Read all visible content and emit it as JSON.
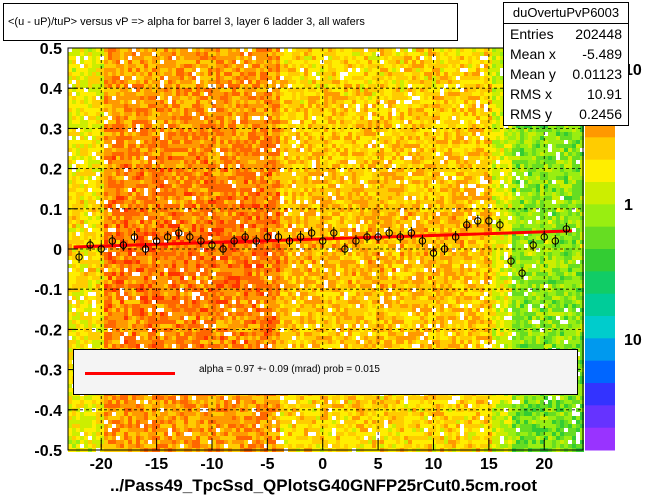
{
  "title": "<(u - uP)/tuP> versus   vP => alpha for barrel 3, layer 6 ladder 3, all wafers",
  "footer": "../Pass49_TpcSsd_QPlotsG40GNFP25rCut0.5cm.root",
  "stats": {
    "name": "duOvertuPvP6003",
    "rows": [
      {
        "label": "Entries",
        "value": "202448"
      },
      {
        "label": "Mean x",
        "value": "-5.489"
      },
      {
        "label": "Mean y",
        "value": "0.01123"
      },
      {
        "label": "RMS x",
        "value": "10.91"
      },
      {
        "label": "RMS y",
        "value": "0.2456"
      }
    ]
  },
  "legend": {
    "text": "alpha =    0.97 +-  0.09 (mrad) prob = 0.015",
    "line_color": "#ff0000"
  },
  "colorbar": {
    "labels": [
      "10",
      "1",
      "10"
    ]
  },
  "chart_data": {
    "type": "heatmap",
    "xlim": [
      -23,
      23.5
    ],
    "ylim": [
      -0.5,
      0.5
    ],
    "x_ticks": [
      -20,
      -15,
      -10,
      -5,
      0,
      5,
      10,
      15,
      20
    ],
    "y_ticks": [
      -0.5,
      -0.4,
      -0.3,
      -0.2,
      -0.1,
      0,
      0.1,
      0.2,
      0.3,
      0.4,
      0.5
    ],
    "grid": true,
    "fit_line": {
      "x": [
        -22.5,
        22.5
      ],
      "y": [
        0.005,
        0.045
      ],
      "color": "#ff0000"
    },
    "profile_points": {
      "x": [
        -22,
        -21,
        -20,
        -19,
        -18,
        -17,
        -16,
        -15,
        -14,
        -13,
        -12,
        -11,
        -10,
        -9,
        -8,
        -7,
        -6,
        -5,
        -4,
        -3,
        -2,
        -1,
        0,
        1,
        2,
        3,
        4,
        5,
        6,
        7,
        8,
        9,
        10,
        11,
        12,
        13,
        14,
        15,
        16,
        17,
        18,
        19,
        20,
        21,
        22
      ],
      "y": [
        -0.02,
        0.01,
        0.0,
        0.02,
        0.01,
        0.03,
        0.0,
        0.02,
        0.03,
        0.04,
        0.03,
        0.02,
        0.01,
        0.0,
        0.02,
        0.03,
        0.02,
        0.03,
        0.03,
        0.02,
        0.03,
        0.04,
        0.02,
        0.04,
        0.0,
        0.02,
        0.03,
        0.03,
        0.04,
        0.03,
        0.04,
        0.02,
        -0.01,
        0.0,
        0.03,
        0.06,
        0.07,
        0.07,
        0.06,
        -0.03,
        -0.06,
        0.01,
        0.03,
        0.02,
        0.05
      ]
    }
  }
}
